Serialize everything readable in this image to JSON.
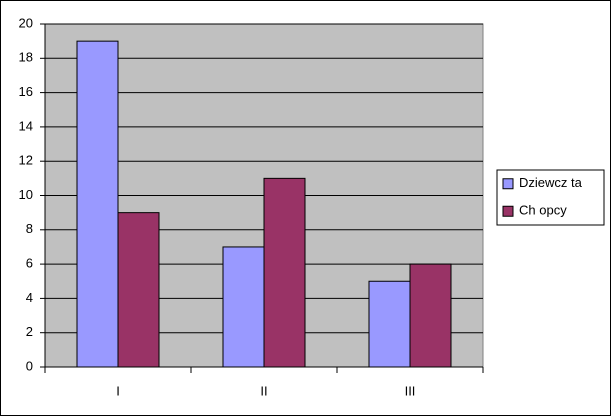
{
  "chart_data": {
    "type": "bar",
    "categories": [
      "I",
      "II",
      "III"
    ],
    "series": [
      {
        "name": "Dziewcz ta",
        "color": "#9999ff",
        "values": [
          19,
          7,
          5
        ]
      },
      {
        "name": "Ch opcy",
        "color": "#993366",
        "values": [
          9,
          11,
          6
        ]
      }
    ],
    "ylim": [
      0,
      20
    ],
    "yticks": [
      0,
      2,
      4,
      6,
      8,
      10,
      12,
      14,
      16,
      18,
      20
    ],
    "grid": true,
    "legend": "right",
    "plot_background": "#c0c0c0"
  }
}
